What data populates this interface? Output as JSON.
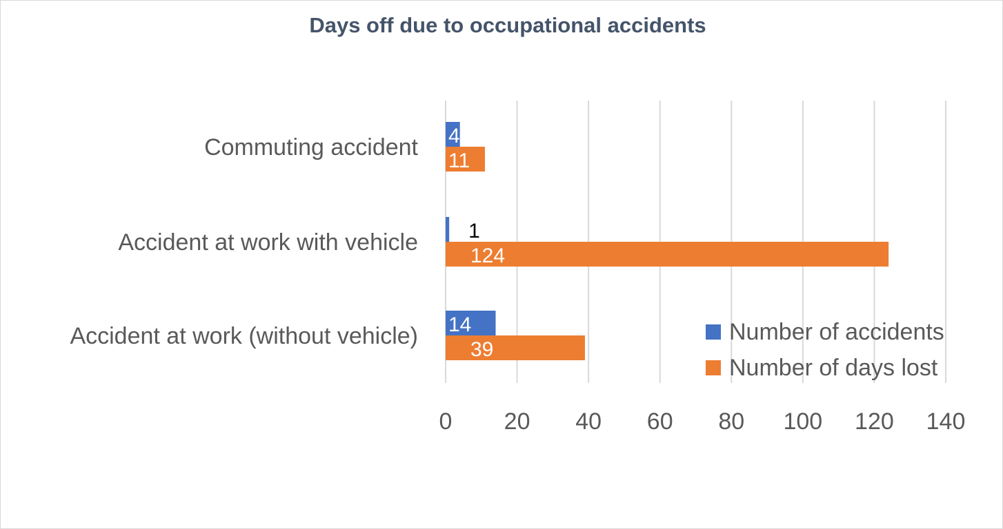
{
  "chart_data": {
    "type": "bar",
    "orientation": "horizontal",
    "title": "Days off due to occupational accidents",
    "categories": [
      "Commuting accident",
      "Accident at work with vehicle",
      "Accident at work (without vehicle)"
    ],
    "series": [
      {
        "name": "Number of accidents",
        "values": [
          4,
          1,
          14
        ],
        "color": "#4472c4"
      },
      {
        "name": "Number of days lost",
        "values": [
          11,
          124,
          39
        ],
        "color": "#ed7d31"
      }
    ],
    "xlim": [
      0,
      140
    ],
    "xticks": [
      "0",
      "20",
      "40",
      "60",
      "80",
      "100",
      "120",
      "140"
    ],
    "grid": true,
    "legend_position": "right"
  }
}
